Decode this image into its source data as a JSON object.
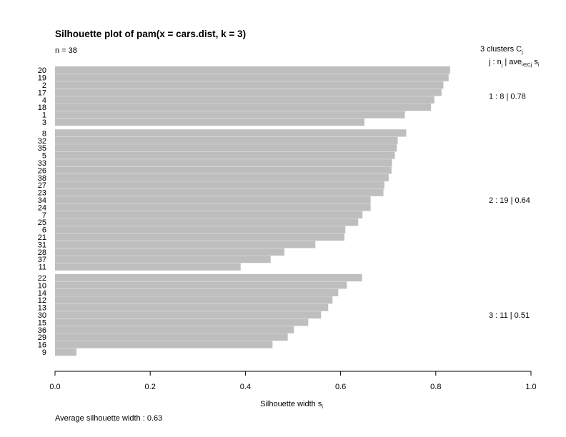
{
  "chart_data": {
    "type": "bar",
    "orientation": "horizontal",
    "title": "Silhouette plot of pam(x = cars.dist, k = 3)",
    "n_label": "n = 38",
    "header": {
      "clusters_text": "3  clusters  C",
      "clusters_sub": "j",
      "legend_j": "j :  n",
      "legend_nsub": "j",
      "legend_ave": " | ave",
      "legend_avesub": "i∈Cj",
      "legend_s": "  s",
      "legend_ssub": "i"
    },
    "xlabel": "Silhouette width s",
    "xlabel_sub": "i",
    "footer": "Average silhouette width :  0.63",
    "xlim": [
      0,
      1
    ],
    "xticks": [
      "0.0",
      "0.2",
      "0.4",
      "0.6",
      "0.8",
      "1.0"
    ],
    "clusters": [
      {
        "summary": "1 :  8  |  0.78",
        "labels": [
          "20",
          "19",
          "2",
          "17",
          "4",
          "18",
          "1",
          "3"
        ],
        "values": [
          0.83,
          0.827,
          0.816,
          0.812,
          0.797,
          0.79,
          0.735,
          0.65
        ]
      },
      {
        "summary": "2 :  19  |  0.64",
        "labels": [
          "8",
          "32",
          "35",
          "5",
          "33",
          "26",
          "38",
          "27",
          "23",
          "34",
          "24",
          "7",
          "25",
          "6",
          "21",
          "31",
          "28",
          "37",
          "11"
        ],
        "values": [
          0.738,
          0.72,
          0.718,
          0.714,
          0.708,
          0.707,
          0.701,
          0.692,
          0.69,
          0.663,
          0.663,
          0.646,
          0.637,
          0.61,
          0.608,
          0.547,
          0.482,
          0.453,
          0.39
        ]
      },
      {
        "summary": "3 :  11  |  0.51",
        "labels": [
          "22",
          "10",
          "14",
          "12",
          "13",
          "30",
          "15",
          "36",
          "29",
          "16",
          "9"
        ],
        "values": [
          0.645,
          0.613,
          0.595,
          0.583,
          0.574,
          0.559,
          0.532,
          0.502,
          0.489,
          0.457,
          0.045
        ]
      }
    ],
    "colors": {
      "bar": "#bebebe",
      "separator": "#ffffff",
      "axis": "#000000"
    }
  }
}
